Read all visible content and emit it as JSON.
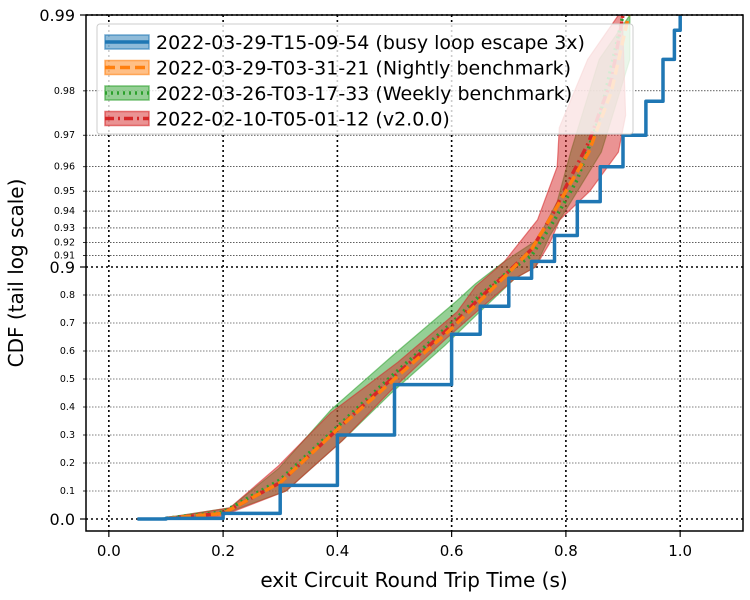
{
  "chart_data": {
    "type": "line",
    "title": "",
    "xlabel": "exit Circuit Round Trip Time (s)",
    "ylabel": "CDF (tail log scale)",
    "xlim": [
      -0.04,
      1.11
    ],
    "x_ticks": [
      0.0,
      0.2,
      0.4,
      0.6,
      0.8,
      1.0
    ],
    "x_tick_labels": [
      "0.0",
      "0.2",
      "0.4",
      "0.6",
      "0.8",
      "1.0"
    ],
    "y_scale": "tail-log (linear below 0.9, log-of-tail above 0.9)",
    "ylim": [
      0.0,
      0.99
    ],
    "y_major_ticks": [
      0.0,
      0.9,
      0.99
    ],
    "y_major_tick_labels": [
      "0.0",
      "0.9",
      "0.99"
    ],
    "y_minor_ticks": [
      0.1,
      0.2,
      0.3,
      0.4,
      0.5,
      0.6,
      0.7,
      0.8,
      0.91,
      0.92,
      0.93,
      0.94,
      0.95,
      0.96,
      0.97,
      0.98
    ],
    "y_minor_tick_labels": [
      "0.1",
      "0.2",
      "0.3",
      "0.4",
      "0.5",
      "0.6",
      "0.7",
      "0.8",
      "0.91",
      "0.92",
      "0.93",
      "0.94",
      "0.95",
      "0.96",
      "0.97",
      "0.98"
    ],
    "grid": true,
    "legend_position": "top-left",
    "series": [
      {
        "name": "2022-03-29-T15-09-54 (busy loop escape 3x)",
        "color": "#1f77b4",
        "line_style": "solid",
        "x": [
          0.05,
          0.1,
          0.2,
          0.3,
          0.4,
          0.5,
          0.6,
          0.65,
          0.7,
          0.74,
          0.78,
          0.82,
          0.86,
          0.9,
          0.94,
          0.97,
          0.99,
          1.0
        ],
        "y": [
          0.0,
          0.002,
          0.02,
          0.12,
          0.3,
          0.48,
          0.66,
          0.76,
          0.86,
          0.905,
          0.925,
          0.945,
          0.96,
          0.97,
          0.978,
          0.985,
          0.9885,
          0.99
        ],
        "band_lower": [
          0.0,
          0.002,
          0.02,
          0.12,
          0.3,
          0.48,
          0.66,
          0.76,
          0.86,
          0.905,
          0.925,
          0.945,
          0.96,
          0.97,
          0.978,
          0.985,
          0.9885,
          0.99
        ],
        "band_upper": [
          0.0,
          0.002,
          0.02,
          0.12,
          0.3,
          0.48,
          0.66,
          0.76,
          0.86,
          0.905,
          0.925,
          0.945,
          0.96,
          0.97,
          0.978,
          0.985,
          0.9885,
          0.99
        ]
      },
      {
        "name": "2022-03-29-T03-31-21 (Nightly benchmark)",
        "color": "#ff7f0e",
        "line_style": "dashed",
        "x": [
          0.1,
          0.2,
          0.3,
          0.4,
          0.5,
          0.6,
          0.65,
          0.7,
          0.74,
          0.78,
          0.8,
          0.84,
          0.88,
          0.91
        ],
        "y": [
          0.002,
          0.02,
          0.13,
          0.32,
          0.5,
          0.68,
          0.78,
          0.88,
          0.915,
          0.94,
          0.95,
          0.965,
          0.98,
          0.99
        ],
        "band_lower": [
          0.002,
          0.02,
          0.13,
          0.32,
          0.5,
          0.68,
          0.78,
          0.88,
          0.915,
          0.94,
          0.95,
          0.965,
          0.98,
          0.99
        ],
        "band_upper": [
          0.002,
          0.02,
          0.13,
          0.32,
          0.5,
          0.68,
          0.78,
          0.88,
          0.915,
          0.94,
          0.95,
          0.965,
          0.98,
          0.99
        ]
      },
      {
        "name": "2022-03-26-T03-17-33 (Weekly benchmark)",
        "color": "#2ca02c",
        "line_style": "dotted",
        "x": [
          0.1,
          0.2,
          0.3,
          0.4,
          0.5,
          0.6,
          0.65,
          0.7,
          0.74,
          0.78,
          0.82,
          0.86,
          0.9
        ],
        "y": [
          0.003,
          0.025,
          0.14,
          0.33,
          0.52,
          0.7,
          0.8,
          0.885,
          0.91,
          0.935,
          0.955,
          0.975,
          0.99
        ],
        "band_lower": [
          0.002,
          0.015,
          0.1,
          0.28,
          0.45,
          0.62,
          0.74,
          0.86,
          0.9,
          0.925,
          0.945,
          0.965,
          0.985
        ],
        "band_upper": [
          0.005,
          0.04,
          0.18,
          0.39,
          0.6,
          0.78,
          0.84,
          0.905,
          0.922,
          0.945,
          0.965,
          0.985,
          0.99
        ]
      },
      {
        "name": "2022-02-10-T05-01-12 (v2.0.0)",
        "color": "#d62728",
        "line_style": "dashdot",
        "x": [
          0.1,
          0.2,
          0.3,
          0.4,
          0.5,
          0.6,
          0.65,
          0.7,
          0.74,
          0.78,
          0.8,
          0.84,
          0.88,
          0.9
        ],
        "y": [
          0.002,
          0.02,
          0.13,
          0.32,
          0.51,
          0.69,
          0.79,
          0.885,
          0.915,
          0.94,
          0.952,
          0.968,
          0.982,
          0.99
        ],
        "band_lower": [
          0.001,
          0.01,
          0.1,
          0.28,
          0.46,
          0.64,
          0.75,
          0.86,
          0.9,
          0.92,
          0.935,
          0.95,
          0.965,
          0.975
        ],
        "band_upper": [
          0.004,
          0.04,
          0.19,
          0.38,
          0.56,
          0.74,
          0.83,
          0.905,
          0.935,
          0.96,
          0.972,
          0.985,
          0.99,
          0.99
        ]
      }
    ]
  }
}
